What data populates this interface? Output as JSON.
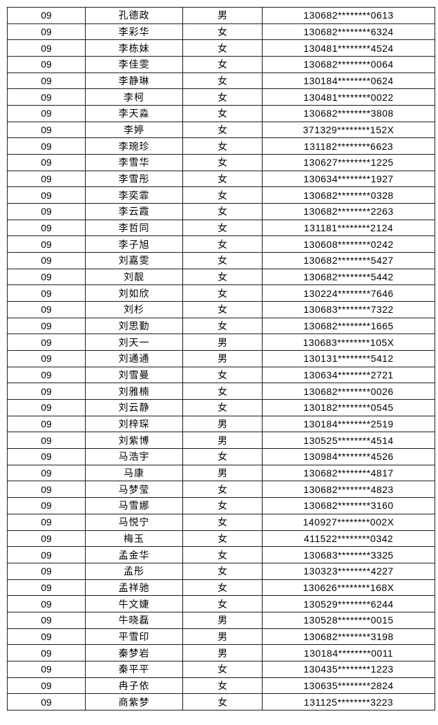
{
  "colors": {
    "border": "#1a1a1a",
    "background": "#ffffff",
    "text": "#000000"
  },
  "table": {
    "columns": [
      "code",
      "name",
      "gender",
      "id_masked"
    ],
    "rows": [
      {
        "code": "09",
        "name": "孔德政",
        "gender": "男",
        "id_masked": "130682********0613"
      },
      {
        "code": "09",
        "name": "李彩华",
        "gender": "女",
        "id_masked": "130682********6324"
      },
      {
        "code": "09",
        "name": "李栋妹",
        "gender": "女",
        "id_masked": "130481********4524"
      },
      {
        "code": "09",
        "name": "李佳雯",
        "gender": "女",
        "id_masked": "130682********0064"
      },
      {
        "code": "09",
        "name": "李静琳",
        "gender": "女",
        "id_masked": "130184********0624"
      },
      {
        "code": "09",
        "name": "李柯",
        "gender": "女",
        "id_masked": "130481********0022"
      },
      {
        "code": "09",
        "name": "李天淼",
        "gender": "女",
        "id_masked": "130682********3808"
      },
      {
        "code": "09",
        "name": "李婷",
        "gender": "女",
        "id_masked": "371329********152X"
      },
      {
        "code": "09",
        "name": "李琬珍",
        "gender": "女",
        "id_masked": "131182********6623"
      },
      {
        "code": "09",
        "name": "李雪华",
        "gender": "女",
        "id_masked": "130627********1225"
      },
      {
        "code": "09",
        "name": "李雪彤",
        "gender": "女",
        "id_masked": "130634********1927"
      },
      {
        "code": "09",
        "name": "李奕霏",
        "gender": "女",
        "id_masked": "130682********0328"
      },
      {
        "code": "09",
        "name": "李云霞",
        "gender": "女",
        "id_masked": "130682********2263"
      },
      {
        "code": "09",
        "name": "李哲同",
        "gender": "女",
        "id_masked": "131181********2124"
      },
      {
        "code": "09",
        "name": "李子旭",
        "gender": "女",
        "id_masked": "130608********0242"
      },
      {
        "code": "09",
        "name": "刘嘉雯",
        "gender": "女",
        "id_masked": "130682********5427"
      },
      {
        "code": "09",
        "name": "刘靓",
        "gender": "女",
        "id_masked": "130682********5442"
      },
      {
        "code": "09",
        "name": "刘如欣",
        "gender": "女",
        "id_masked": "130224********7646"
      },
      {
        "code": "09",
        "name": "刘杉",
        "gender": "女",
        "id_masked": "130683********7322"
      },
      {
        "code": "09",
        "name": "刘思勤",
        "gender": "女",
        "id_masked": "130682********1665"
      },
      {
        "code": "09",
        "name": "刘天一",
        "gender": "男",
        "id_masked": "130683********105X"
      },
      {
        "code": "09",
        "name": "刘通通",
        "gender": "男",
        "id_masked": "130131********5412"
      },
      {
        "code": "09",
        "name": "刘雪曼",
        "gender": "女",
        "id_masked": "130634********2721"
      },
      {
        "code": "09",
        "name": "刘雅楠",
        "gender": "女",
        "id_masked": "130682********0026"
      },
      {
        "code": "09",
        "name": "刘云静",
        "gender": "女",
        "id_masked": "130182********0545"
      },
      {
        "code": "09",
        "name": "刘梓琛",
        "gender": "男",
        "id_masked": "130184********2519"
      },
      {
        "code": "09",
        "name": "刘紫博",
        "gender": "男",
        "id_masked": "130525********4514"
      },
      {
        "code": "09",
        "name": "马浩宇",
        "gender": "女",
        "id_masked": "130984********4526"
      },
      {
        "code": "09",
        "name": "马康",
        "gender": "男",
        "id_masked": "130682********4817"
      },
      {
        "code": "09",
        "name": "马梦莹",
        "gender": "女",
        "id_masked": "130682********4823"
      },
      {
        "code": "09",
        "name": "马雪娜",
        "gender": "女",
        "id_masked": "130682********3160"
      },
      {
        "code": "09",
        "name": "马悦宁",
        "gender": "女",
        "id_masked": "140927********002X"
      },
      {
        "code": "09",
        "name": "梅玉",
        "gender": "女",
        "id_masked": "411522********0342"
      },
      {
        "code": "09",
        "name": "孟金华",
        "gender": "女",
        "id_masked": "130683********3325"
      },
      {
        "code": "09",
        "name": "孟彤",
        "gender": "女",
        "id_masked": "130323********4227"
      },
      {
        "code": "09",
        "name": "孟祥驰",
        "gender": "女",
        "id_masked": "130626********168X"
      },
      {
        "code": "09",
        "name": "牛文婕",
        "gender": "女",
        "id_masked": "130529********6244"
      },
      {
        "code": "09",
        "name": "牛晓磊",
        "gender": "男",
        "id_masked": "130528********0015"
      },
      {
        "code": "09",
        "name": "平雪印",
        "gender": "男",
        "id_masked": "130682********3198"
      },
      {
        "code": "09",
        "name": "秦梦岩",
        "gender": "男",
        "id_masked": "130184********0011"
      },
      {
        "code": "09",
        "name": "秦平平",
        "gender": "女",
        "id_masked": "130435********1223"
      },
      {
        "code": "09",
        "name": "冉子依",
        "gender": "女",
        "id_masked": "130635********2824"
      },
      {
        "code": "09",
        "name": "商紫梦",
        "gender": "女",
        "id_masked": "131125********3223"
      }
    ]
  }
}
